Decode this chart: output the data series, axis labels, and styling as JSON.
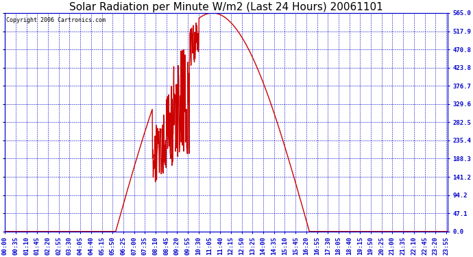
{
  "title": "Solar Radiation per Minute W/m2 (Last 24 Hours) 20061101",
  "copyright": "Copyright 2006 Cartronics.com",
  "bg_color": "#FFFFFF",
  "plot_bg_color": "#FFFFFF",
  "line_color": "#CC0000",
  "grid_color": "#0000CC",
  "axis_color": "#0000CC",
  "text_color": "#0000CC",
  "ylabel_right": [
    "565.0",
    "517.9",
    "470.8",
    "423.8",
    "376.7",
    "329.6",
    "282.5",
    "235.4",
    "188.3",
    "141.2",
    "94.2",
    "47.1",
    "0.0"
  ],
  "ytick_values": [
    565.0,
    517.9,
    470.8,
    423.8,
    376.7,
    329.6,
    282.5,
    235.4,
    188.3,
    141.2,
    94.2,
    47.1,
    0.0
  ],
  "ymax": 565.0,
  "ymin": 0.0,
  "title_fontsize": 11,
  "copyright_fontsize": 6,
  "tick_fontsize": 6.5,
  "line_width": 1.0
}
